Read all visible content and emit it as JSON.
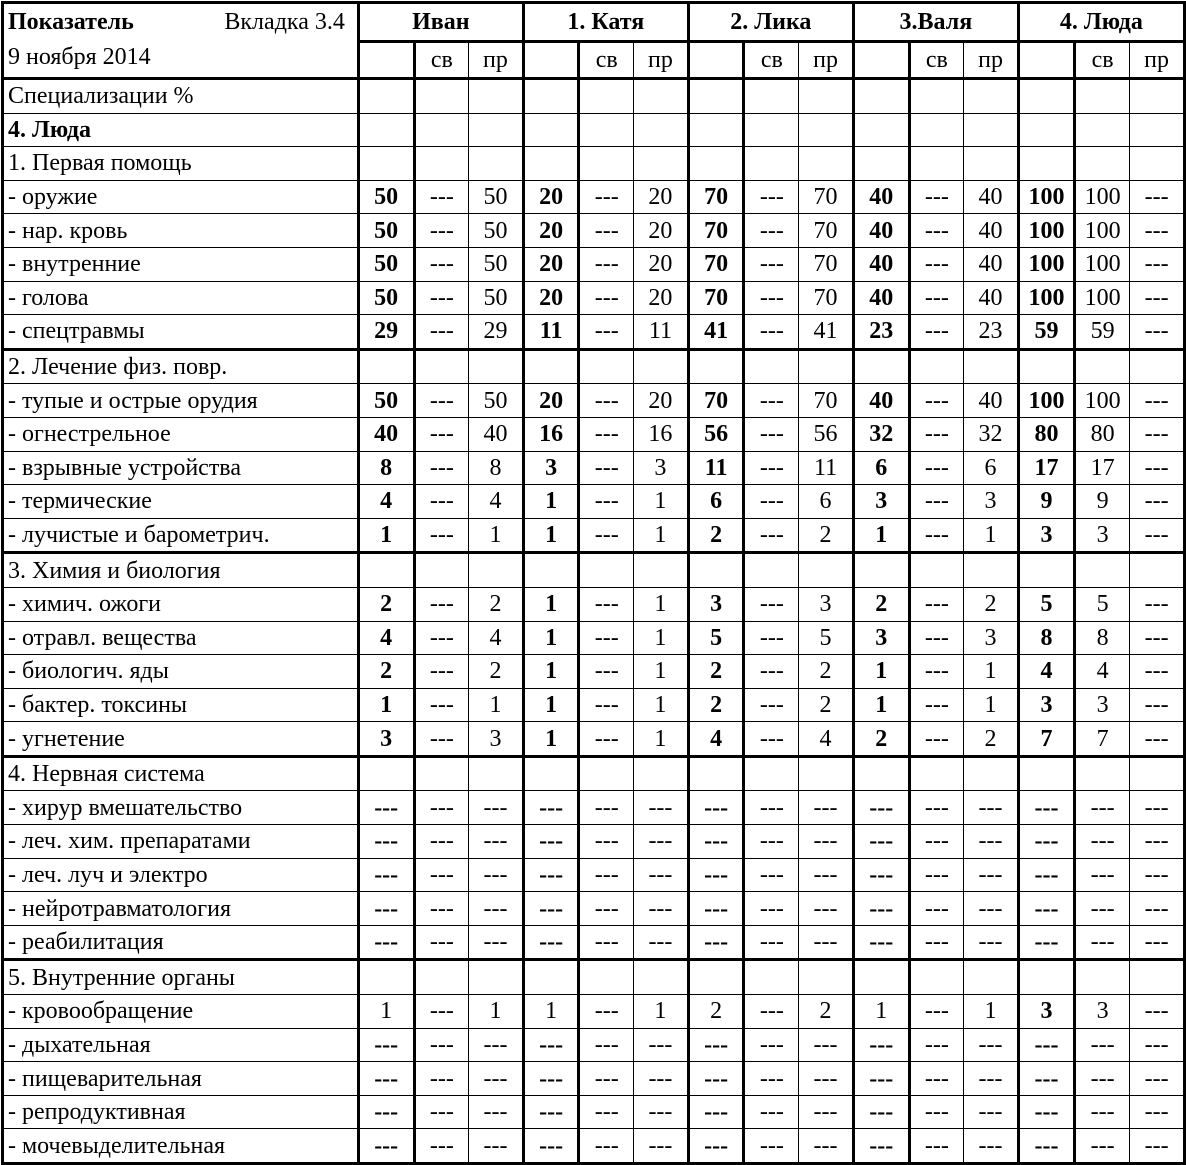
{
  "header": {
    "title": "Показатель",
    "tab": "Вкладка 3.4",
    "date": "9 ноября 2014",
    "groups": [
      "Иван",
      "1. Катя",
      "2. Лика",
      "3.Валя",
      "4. Люда"
    ],
    "subcols": [
      "",
      "св",
      "пр"
    ]
  },
  "rows": [
    {
      "label": "Специализации %",
      "cells": [
        "",
        "",
        "",
        "",
        "",
        "",
        "",
        "",
        "",
        "",
        "",
        "",
        "",
        "",
        ""
      ]
    },
    {
      "label": "4. Люда",
      "label_bold": true,
      "cells": [
        "",
        "",
        "",
        "",
        "",
        "",
        "",
        "",
        "",
        "",
        "",
        "",
        "",
        "",
        ""
      ]
    },
    {
      "label": "1. Первая помощь",
      "cells": [
        "",
        "",
        "",
        "",
        "",
        "",
        "",
        "",
        "",
        "",
        "",
        "",
        "",
        "",
        ""
      ]
    },
    {
      "label": "- оружие",
      "cells": [
        "50",
        "---",
        "50",
        "20",
        "---",
        "20",
        "70",
        "---",
        "70",
        "40",
        "---",
        "40",
        "100",
        "100",
        "---"
      ]
    },
    {
      "label": "- нар. кровь",
      "cells": [
        "50",
        "---",
        "50",
        "20",
        "---",
        "20",
        "70",
        "---",
        "70",
        "40",
        "---",
        "40",
        "100",
        "100",
        "---"
      ]
    },
    {
      "label": "- внутренние",
      "cells": [
        "50",
        "---",
        "50",
        "20",
        "---",
        "20",
        "70",
        "---",
        "70",
        "40",
        "---",
        "40",
        "100",
        "100",
        "---"
      ]
    },
    {
      "label": "- голова",
      "cells": [
        "50",
        "---",
        "50",
        "20",
        "---",
        "20",
        "70",
        "---",
        "70",
        "40",
        "---",
        "40",
        "100",
        "100",
        "---"
      ]
    },
    {
      "label": "- спецтравмы",
      "cells": [
        "29",
        "---",
        "29",
        "11",
        "---",
        "11",
        "41",
        "---",
        "41",
        "23",
        "---",
        "23",
        "59",
        "59",
        "---"
      ]
    },
    {
      "label": "2. Лечение физ. повр.",
      "section": true,
      "cells": [
        "",
        "",
        "",
        "",
        "",
        "",
        "",
        "",
        "",
        "",
        "",
        "",
        "",
        "",
        ""
      ]
    },
    {
      "label": "- тупые и острые орудия",
      "cells": [
        "50",
        "---",
        "50",
        "20",
        "---",
        "20",
        "70",
        "---",
        "70",
        "40",
        "---",
        "40",
        "100",
        "100",
        "---"
      ]
    },
    {
      "label": "- огнестрельное",
      "cells": [
        "40",
        "---",
        "40",
        "16",
        "---",
        "16",
        "56",
        "---",
        "56",
        "32",
        "---",
        "32",
        "80",
        "80",
        "---"
      ]
    },
    {
      "label": "- взрывные устройства",
      "cells": [
        "8",
        "---",
        "8",
        "3",
        "---",
        "3",
        "11",
        "---",
        "11",
        "6",
        "---",
        "6",
        "17",
        "17",
        "---"
      ]
    },
    {
      "label": "- термические",
      "cells": [
        "4",
        "---",
        "4",
        "1",
        "---",
        "1",
        "6",
        "---",
        "6",
        "3",
        "---",
        "3",
        "9",
        "9",
        "---"
      ]
    },
    {
      "label": "- лучистые и барометрич.",
      "cells": [
        "1",
        "---",
        "1",
        "1",
        "---",
        "1",
        "2",
        "---",
        "2",
        "1",
        "---",
        "1",
        "3",
        "3",
        "---"
      ]
    },
    {
      "label": "3. Химия и биология",
      "section": true,
      "cells": [
        "",
        "",
        "",
        "",
        "",
        "",
        "",
        "",
        "",
        "",
        "",
        "",
        "",
        "",
        ""
      ]
    },
    {
      "label": "- химич. ожоги",
      "cells": [
        "2",
        "---",
        "2",
        "1",
        "---",
        "1",
        "3",
        "---",
        "3",
        "2",
        "---",
        "2",
        "5",
        "5",
        "---"
      ]
    },
    {
      "label": "- отравл. вещества",
      "cells": [
        "4",
        "---",
        "4",
        "1",
        "---",
        "1",
        "5",
        "---",
        "5",
        "3",
        "---",
        "3",
        "8",
        "8",
        "---"
      ]
    },
    {
      "label": "- биологич. яды",
      "cells": [
        "2",
        "---",
        "2",
        "1",
        "---",
        "1",
        "2",
        "---",
        "2",
        "1",
        "---",
        "1",
        "4",
        "4",
        "---"
      ]
    },
    {
      "label": "- бактер. токсины",
      "cells": [
        "1",
        "---",
        "1",
        "1",
        "---",
        "1",
        "2",
        "---",
        "2",
        "1",
        "---",
        "1",
        "3",
        "3",
        "---"
      ]
    },
    {
      "label": "- угнетение",
      "cells": [
        "3",
        "---",
        "3",
        "1",
        "---",
        "1",
        "4",
        "---",
        "4",
        "2",
        "---",
        "2",
        "7",
        "7",
        "---"
      ]
    },
    {
      "label": "4. Нервная система",
      "section": true,
      "cells": [
        "",
        "",
        "",
        "",
        "",
        "",
        "",
        "",
        "",
        "",
        "",
        "",
        "",
        "",
        ""
      ]
    },
    {
      "label": "- хирур вмешательство",
      "cells": [
        "---",
        "---",
        "---",
        "---",
        "---",
        "---",
        "---",
        "---",
        "---",
        "---",
        "---",
        "---",
        "---",
        "---",
        "---"
      ]
    },
    {
      "label": "- леч. хим. препаратами",
      "cells": [
        "---",
        "---",
        "---",
        "---",
        "---",
        "---",
        "---",
        "---",
        "---",
        "---",
        "---",
        "---",
        "---",
        "---",
        "---"
      ]
    },
    {
      "label": "- леч. луч и электро",
      "cells": [
        "---",
        "---",
        "---",
        "---",
        "---",
        "---",
        "---",
        "---",
        "---",
        "---",
        "---",
        "---",
        "---",
        "---",
        "---"
      ]
    },
    {
      "label": "- нейротравматология",
      "cells": [
        "---",
        "---",
        "---",
        "---",
        "---",
        "---",
        "---",
        "---",
        "---",
        "---",
        "---",
        "---",
        "---",
        "---",
        "---"
      ]
    },
    {
      "label": "- реабилитация",
      "cells": [
        "---",
        "---",
        "---",
        "---",
        "---",
        "---",
        "---",
        "---",
        "---",
        "---",
        "---",
        "---",
        "---",
        "---",
        "---"
      ]
    },
    {
      "label": "5. Внутренние органы",
      "section": true,
      "cells": [
        "",
        "",
        "",
        "",
        "",
        "",
        "",
        "",
        "",
        "",
        "",
        "",
        "",
        "",
        ""
      ]
    },
    {
      "label": "- кровообращение",
      "bold_groups": [
        4
      ],
      "cells": [
        "1",
        "---",
        "1",
        "1",
        "---",
        "1",
        "2",
        "---",
        "2",
        "1",
        "---",
        "1",
        "3",
        "3",
        "---"
      ]
    },
    {
      "label": "- дыхательная",
      "cells": [
        "---",
        "---",
        "---",
        "---",
        "---",
        "---",
        "---",
        "---",
        "---",
        "---",
        "---",
        "---",
        "---",
        "---",
        "---"
      ]
    },
    {
      "label": "- пищеварительная",
      "cells": [
        "---",
        "---",
        "---",
        "---",
        "---",
        "---",
        "---",
        "---",
        "---",
        "---",
        "---",
        "---",
        "---",
        "---",
        "---"
      ]
    },
    {
      "label": "- репродуктивная",
      "cells": [
        "---",
        "---",
        "---",
        "---",
        "---",
        "---",
        "---",
        "---",
        "---",
        "---",
        "---",
        "---",
        "---",
        "---",
        "---"
      ]
    },
    {
      "label": "- мочевыделительная",
      "cells": [
        "---",
        "---",
        "---",
        "---",
        "---",
        "---",
        "---",
        "---",
        "---",
        "---",
        "---",
        "---",
        "---",
        "---",
        "---"
      ]
    }
  ]
}
